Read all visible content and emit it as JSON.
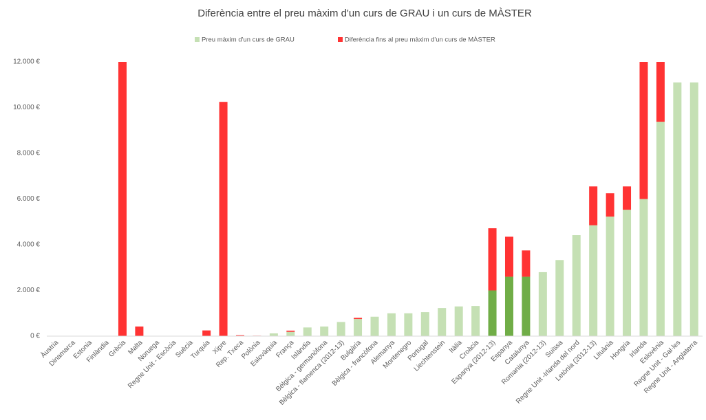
{
  "chart_data": {
    "type": "stacked_bar",
    "title": "Diferència entre el preu màxim d'un curs de GRAU i un curs de MÀSTER",
    "categories": [
      "Àustria",
      "Dinamarca",
      "Estonia",
      "Finlàndia",
      "Grècia",
      "Malta",
      "Noruega",
      "Regne Unit - Escòcia",
      "Suècia",
      "Turquia",
      "Xipre",
      "Rep. Txeca",
      "Polònia",
      "Eslovàquia",
      "França",
      "Islàndia",
      "Bèlgica - germanòfona",
      "Bèlgica - flamenca (2012-13)",
      "Bulgària",
      "Bèlgica - francòfona",
      "Alemanya",
      "Montenegro",
      "Portugal",
      "Liechtenstein",
      "Itàlia",
      "Croàcia",
      "Espanya (2012-13)",
      "Espanya",
      "Catalunya",
      "Romania (2012-13)",
      "Suïssa",
      "Regne Unit -Irlanda del nord",
      "Letònia (2012-13)",
      "Lituània",
      "Hongria",
      "Irlanda",
      "Eslovènia",
      "Regne Unit - Gal·les",
      "Regne Unit - Anglaterra"
    ],
    "series": [
      {
        "name": "Preu màxim d'un curs de GRAU",
        "color": "#c5e0b4",
        "colors": [
          "#c5e0b4",
          "#c5e0b4",
          "#c5e0b4",
          "#c5e0b4",
          "#c5e0b4",
          "#c5e0b4",
          "#c5e0b4",
          "#c5e0b4",
          "#c5e0b4",
          "#c5e0b4",
          "#c5e0b4",
          "#c5e0b4",
          "#c5e0b4",
          "#c5e0b4",
          "#c5e0b4",
          "#c5e0b4",
          "#c5e0b4",
          "#c5e0b4",
          "#c5e0b4",
          "#c5e0b4",
          "#c5e0b4",
          "#c5e0b4",
          "#c5e0b4",
          "#c5e0b4",
          "#c5e0b4",
          "#c5e0b4",
          "#70ad47",
          "#70ad47",
          "#70ad47",
          "#c5e0b4",
          "#c5e0b4",
          "#c5e0b4",
          "#c5e0b4",
          "#c5e0b4",
          "#c5e0b4",
          "#c5e0b4",
          "#c5e0b4",
          "#c5e0b4",
          "#c5e0b4"
        ],
        "values": [
          0,
          0,
          0,
          0,
          0,
          0,
          0,
          0,
          0,
          0,
          0,
          0,
          0,
          120,
          190,
          380,
          420,
          620,
          750,
          850,
          1000,
          1000,
          1050,
          1230,
          1300,
          1320,
          2000,
          2600,
          2600,
          2800,
          3330,
          4420,
          4850,
          5230,
          5530,
          6000,
          9380,
          11100,
          11100
        ]
      },
      {
        "name": "Diferència fins al preu màxim d'un curs de MÀSTER",
        "color": "#ff3333",
        "values": [
          0,
          0,
          0,
          0,
          12000,
          420,
          0,
          0,
          0,
          250,
          10250,
          40,
          20,
          0,
          50,
          0,
          0,
          0,
          50,
          0,
          0,
          0,
          0,
          0,
          0,
          0,
          2720,
          1750,
          1150,
          0,
          0,
          0,
          1700,
          1020,
          1020,
          6000,
          2620,
          0,
          0
        ]
      }
    ],
    "ylim": [
      0,
      12000
    ],
    "yticks": [
      {
        "value": 0,
        "label": "0 €"
      },
      {
        "value": 2000,
        "label": "2.000 €"
      },
      {
        "value": 4000,
        "label": "4.000 €"
      },
      {
        "value": 6000,
        "label": "6.000 €"
      },
      {
        "value": 8000,
        "label": "8.000 €"
      },
      {
        "value": 10000,
        "label": "10.000 €"
      },
      {
        "value": 12000,
        "label": "12.000 €"
      }
    ],
    "legend": "top"
  }
}
